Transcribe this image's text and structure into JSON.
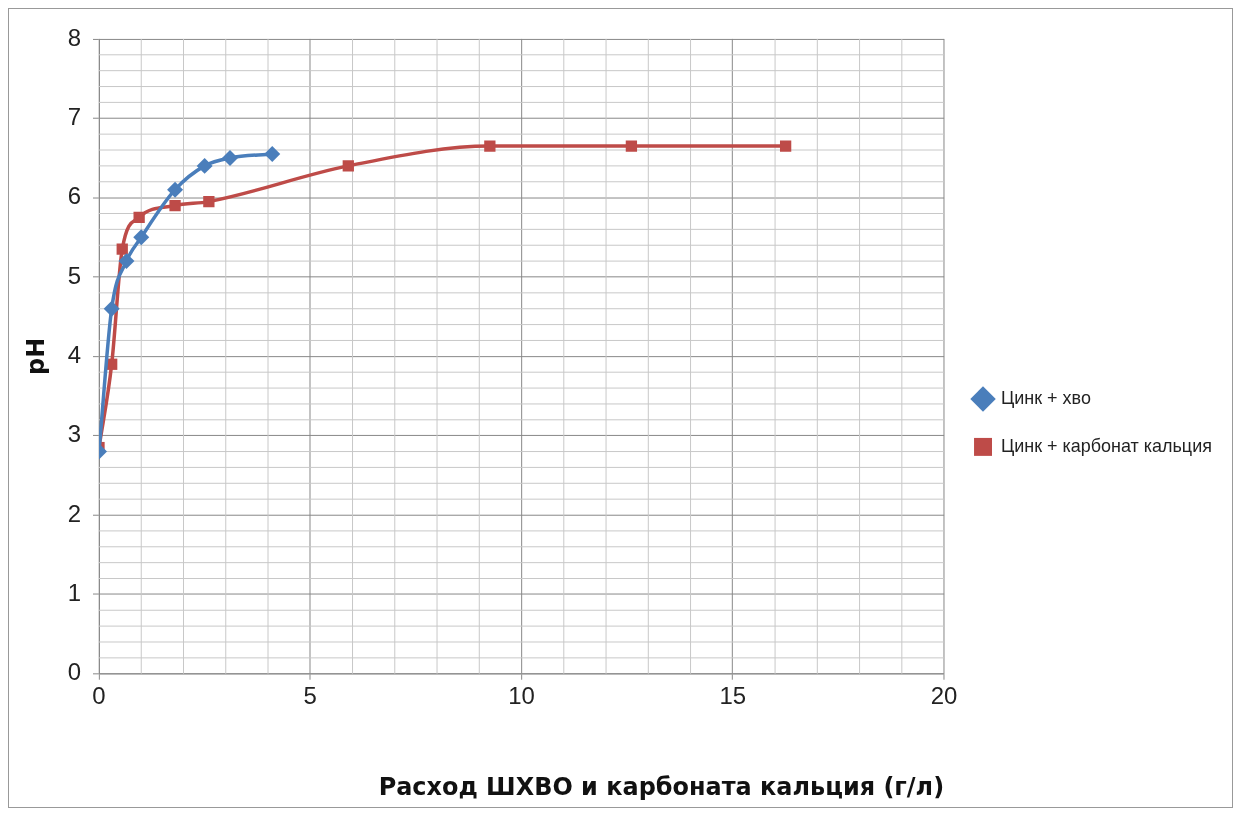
{
  "chart_data": {
    "type": "line",
    "xlabel": "Расход ШХВО и карбоната кальция (г/л)",
    "ylabel": "pH",
    "xlim": [
      0,
      20
    ],
    "xticks": [
      0,
      5,
      10,
      15,
      20
    ],
    "ylim": [
      0,
      8
    ],
    "yticks": [
      0,
      1,
      2,
      3,
      4,
      5,
      6,
      7,
      8
    ],
    "grid": true,
    "legend": "right",
    "line_style": "solid",
    "series": [
      {
        "name": "Цинк + хво",
        "color": "#4a7ebb",
        "marker": "diamond",
        "x": [
          0,
          0.3,
          0.65,
          1.0,
          1.8,
          2.5,
          3.1,
          4.1
        ],
        "values": [
          2.8,
          4.6,
          5.2,
          5.5,
          6.1,
          6.4,
          6.5,
          6.55
        ]
      },
      {
        "name": "Цинк + карбонат кальция",
        "color": "#be4b48",
        "marker": "square",
        "x": [
          0,
          0.3,
          0.55,
          0.95,
          1.8,
          2.6,
          5.9,
          9.25,
          12.6,
          16.25
        ],
        "values": [
          2.85,
          3.9,
          5.35,
          5.75,
          5.9,
          5.95,
          6.4,
          6.65,
          6.65,
          6.65
        ]
      }
    ]
  }
}
